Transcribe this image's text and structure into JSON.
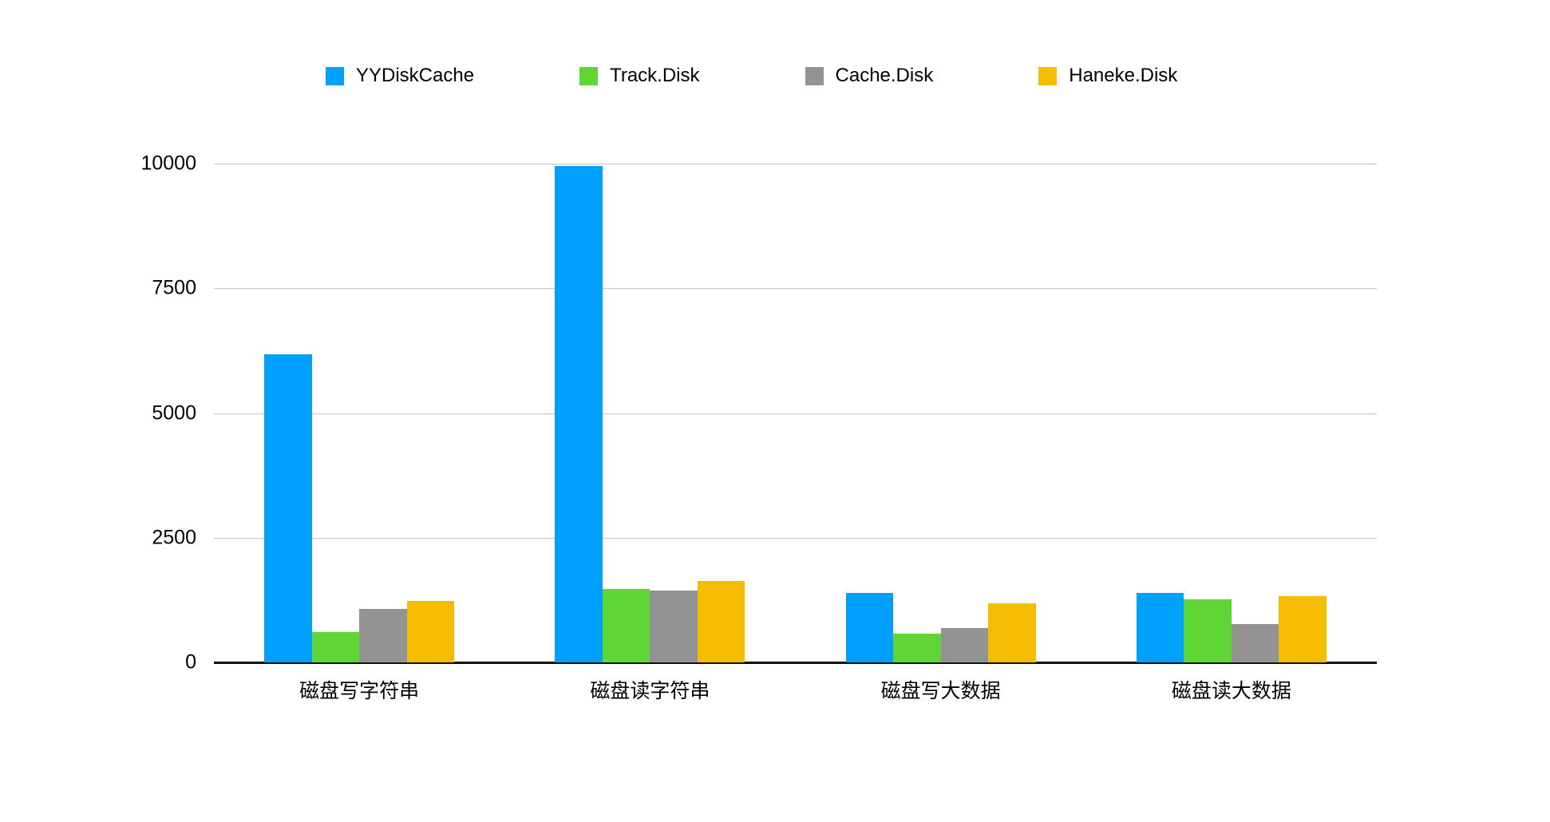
{
  "chart_data": {
    "type": "bar",
    "title": "",
    "xlabel": "",
    "ylabel": "",
    "categories": [
      "磁盘写字符串",
      "磁盘读字符串",
      "磁盘写大数据",
      "磁盘读大数据"
    ],
    "series": [
      {
        "name": "YYDiskCache",
        "color": "#00A0FF",
        "values": [
          6180,
          9950,
          1390,
          1390
        ]
      },
      {
        "name": "Track.Disk",
        "color": "#5FD636",
        "values": [
          610,
          1470,
          575,
          1260
        ]
      },
      {
        "name": "Cache.Disk",
        "color": "#939393",
        "values": [
          1070,
          1440,
          690,
          770
        ]
      },
      {
        "name": "Haneke.Disk",
        "color": "#F6BC00",
        "values": [
          1230,
          1630,
          1190,
          1330
        ]
      }
    ],
    "ylim": [
      0,
      10000
    ],
    "yticks": [
      0,
      2500,
      5000,
      7500,
      10000
    ],
    "grid": true,
    "legend_position": "top",
    "colors": {
      "gridline": "#c9c9c9",
      "axis_line": "#111111",
      "background": "#ffffff",
      "text": "#000000"
    }
  }
}
